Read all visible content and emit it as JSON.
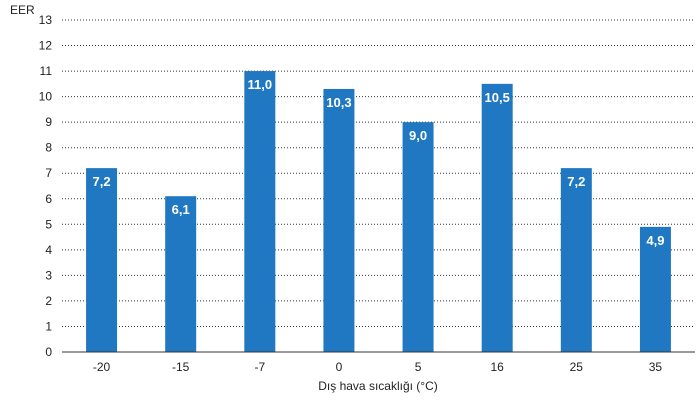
{
  "chart_data": {
    "type": "bar",
    "xlabel": "Dış hava sıcaklığı (°C)",
    "ylabel": "EER",
    "categories": [
      "-20",
      "-15",
      "-7",
      "0",
      "5",
      "16",
      "25",
      "35"
    ],
    "values": [
      7.2,
      6.1,
      11.0,
      10.3,
      9.0,
      10.5,
      7.2,
      4.9
    ],
    "value_labels": [
      "7,2",
      "6,1",
      "11,0",
      "10,3",
      "9,0",
      "10,5",
      "7,2",
      "4,9"
    ],
    "ylim": [
      0,
      13
    ],
    "yticks": [
      "0",
      "1",
      "2",
      "3",
      "4",
      "5",
      "6",
      "7",
      "8",
      "9",
      "10",
      "11",
      "12",
      "13"
    ],
    "grid": true,
    "bar_color": "#1f78c1",
    "label_color": "#ffffff"
  }
}
